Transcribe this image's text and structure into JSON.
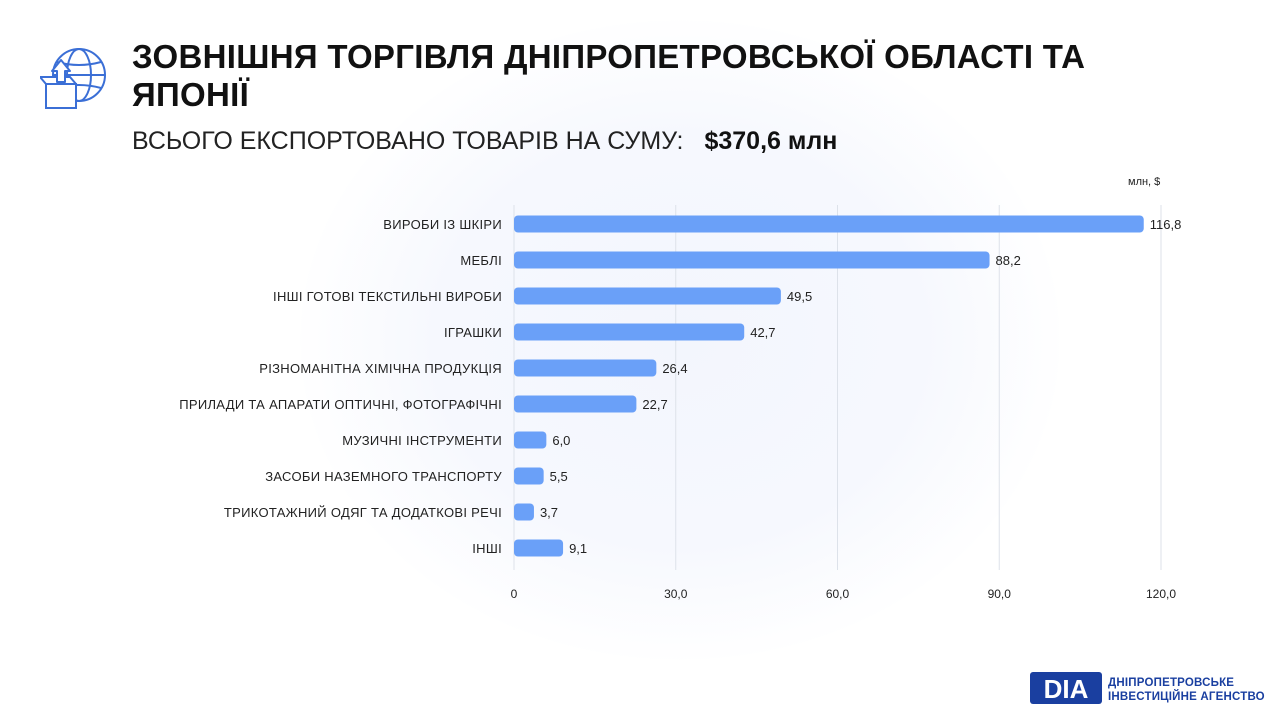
{
  "header": {
    "title": "ЗОВНІШНЯ ТОРГІВЛЯ ДНІПРОПЕТРОВСЬКОЇ ОБЛАСТІ ТА ЯПОНІЇ",
    "subtitle_text": "ВСЬОГО ЕКСПОРТОВАНО ТОВАРІВ НА СУМУ:",
    "subtitle_amount": "$370,6 млн",
    "icon": "globe-export-box-icon"
  },
  "colors": {
    "bar": "#6aa0f8",
    "grid": "#dde2ea",
    "brand": "#1a3fa0"
  },
  "chart_data": {
    "type": "bar",
    "orientation": "horizontal",
    "unit_label": "млн, $",
    "categories": [
      "ВИРОБИ ІЗ ШКІРИ",
      "МЕБЛІ",
      "ІНШІ ГОТОВІ ТЕКСТИЛЬНІ ВИРОБИ",
      "ІГРАШКИ",
      "РІЗНОМАНІТНА ХІМІЧНА ПРОДУКЦІЯ",
      "ПРИЛАДИ ТА АПАРАТИ ОПТИЧНІ, ФОТОГРАФІЧНІ",
      "МУЗИЧНІ ІНСТРУМЕНТИ",
      "ЗАСОБИ НАЗЕМНОГО ТРАНСПОРТУ",
      "ТРИКОТАЖНИЙ ОДЯГ ТА ДОДАТКОВІ РЕЧІ",
      "ІНШІ"
    ],
    "values": [
      116.8,
      88.2,
      49.5,
      42.7,
      26.4,
      22.7,
      6.0,
      5.5,
      3.7,
      9.1
    ],
    "value_labels": [
      "116,8",
      "88,2",
      "49,5",
      "42,7",
      "26,4",
      "22,7",
      "6,0",
      "5,5",
      "3,7",
      "9,1"
    ],
    "xlim": [
      0,
      120
    ],
    "xticks": [
      0,
      30,
      60,
      90,
      120
    ],
    "xtick_labels": [
      "0",
      "30,0",
      "60,0",
      "90,0",
      "120,0"
    ],
    "grid": true,
    "legend": "none"
  },
  "logo": {
    "mark": "DIA",
    "line1": "ДНІПРОПЕТРОВСЬКЕ",
    "line2": "ІНВЕСТИЦІЙНЕ АГЕНСТВО"
  }
}
